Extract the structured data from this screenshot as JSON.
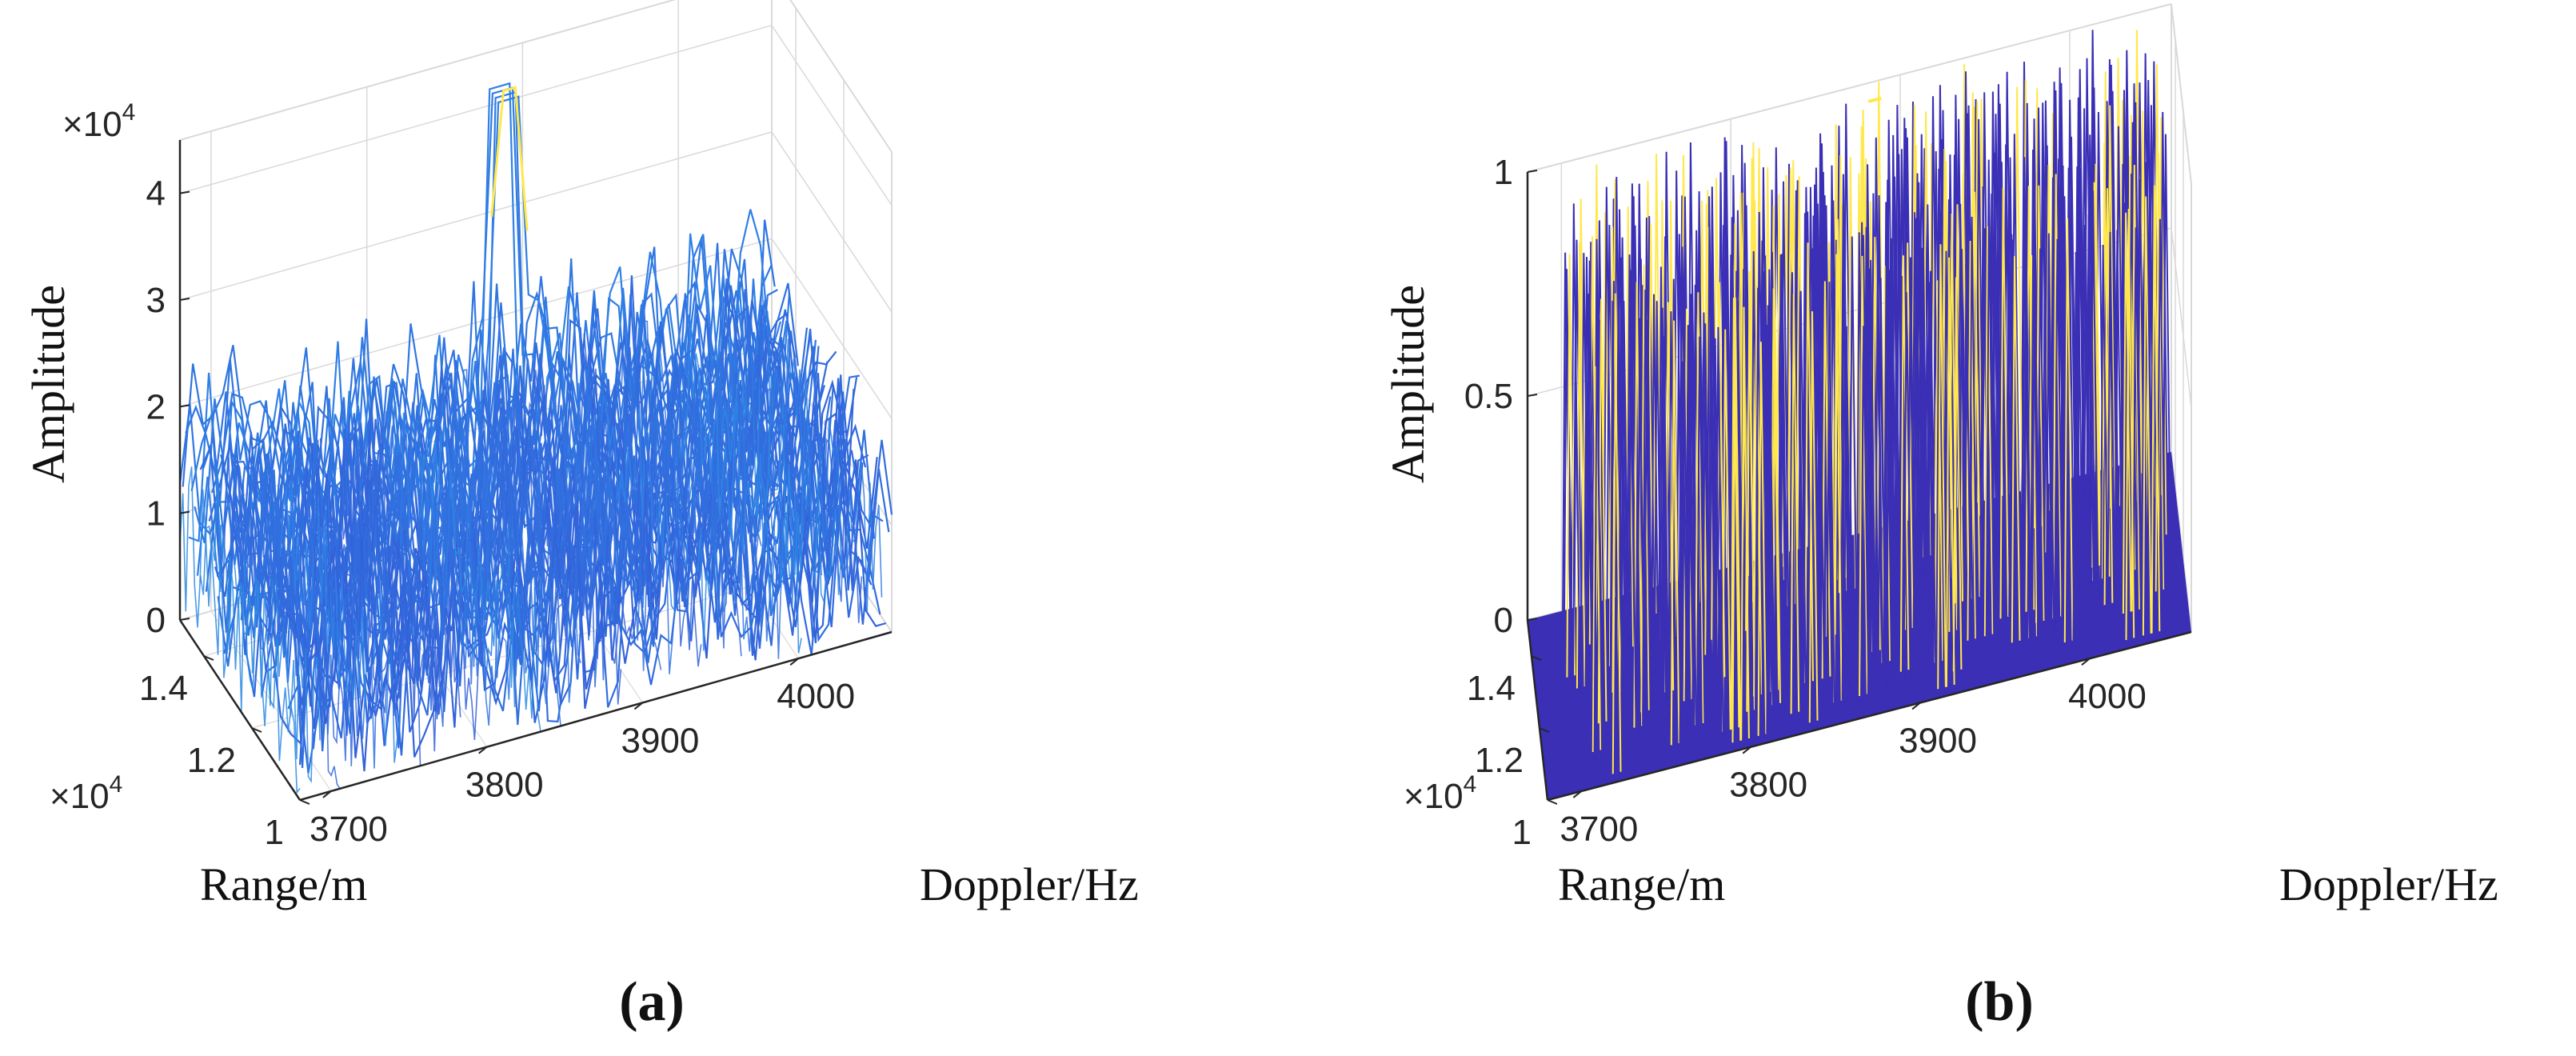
{
  "chart_data": [
    {
      "type": "mesh3d",
      "panel_label": "(a)",
      "zlabel": "Amplitude",
      "xlabel": "Doppler/Hz",
      "ylabel": "Range/m",
      "z_exponent": "×10^4",
      "y_exponent": "×10^4",
      "x_ticks": [
        "3700",
        "3800",
        "3900",
        "4000"
      ],
      "y_ticks": [
        "1",
        "1.2",
        "1.4"
      ],
      "z_ticks": [
        "0",
        "1",
        "2",
        "3",
        "4"
      ],
      "xlim": [
        3680,
        4060
      ],
      "ylim": [
        1.0,
        1.5
      ],
      "zlim": [
        0,
        4.5
      ],
      "peak": {
        "doppler": 3880,
        "range": 1.45,
        "amplitude": 4.3
      },
      "note": "clutter + noise surface, amplitudes roughly 0.5–3.5 (×10^4)"
    },
    {
      "type": "mesh3d",
      "panel_label": "(b)",
      "zlabel": "Amplitude",
      "xlabel": "Doppler/Hz",
      "ylabel": "Range/m",
      "y_exponent": "×10^4",
      "x_ticks": [
        "3700",
        "3800",
        "3900",
        "4000"
      ],
      "y_ticks": [
        "1",
        "1.2",
        "1.4"
      ],
      "z_ticks": [
        "0",
        "0.5",
        "1"
      ],
      "xlim": [
        3680,
        4060
      ],
      "ylim": [
        1.0,
        1.5
      ],
      "zlim": [
        0,
        1
      ],
      "peak": {
        "doppler": 3880,
        "range": 1.45,
        "amplitude": 1.0
      },
      "note": "binary detection map, values 0 or 1"
    }
  ],
  "colors": {
    "axis": "#262626",
    "grid": "#d9d9d9",
    "mesh_low": "#3b2fc4",
    "mesh_mid": "#2e86e8",
    "mesh_high": "#1fb6b0",
    "peak": "#ffe84d",
    "floor": "#3a2fb5"
  }
}
